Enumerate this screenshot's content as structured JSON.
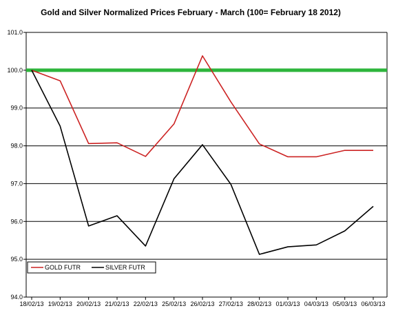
{
  "chart_data": {
    "type": "line",
    "title": "Gold and Silver Normalized Prices February -  March  (100= February 18 2012)",
    "xlabel": "",
    "ylabel": "",
    "categories": [
      "18/02/13",
      "19/02/13",
      "20/02/13",
      "21/02/13",
      "22/02/13",
      "25/02/13",
      "26/02/13",
      "27/02/13",
      "28/02/13",
      "01/03/13",
      "04/03/13",
      "05/03/13",
      "06/03/13"
    ],
    "y_ticks": [
      "94.0",
      "95.0",
      "96.0",
      "97.0",
      "98.0",
      "99.0",
      "100.0",
      "101.0"
    ],
    "ylim": [
      94,
      101
    ],
    "grid": true,
    "legend_position": "bottom-left",
    "reference_line": {
      "value": 100,
      "color": "#2DB53C"
    },
    "series": [
      {
        "name": "GOLD  FUTR",
        "color": "#CC2222",
        "values": [
          100.0,
          99.72,
          98.06,
          98.08,
          97.72,
          98.58,
          100.38,
          99.16,
          98.05,
          97.71,
          97.71,
          97.88,
          97.88
        ]
      },
      {
        "name": "SILVER  FUTR",
        "color": "#000000",
        "values": [
          100.0,
          98.52,
          95.88,
          96.15,
          95.35,
          97.13,
          98.03,
          96.98,
          95.13,
          95.33,
          95.38,
          95.75,
          96.4
        ]
      }
    ]
  }
}
